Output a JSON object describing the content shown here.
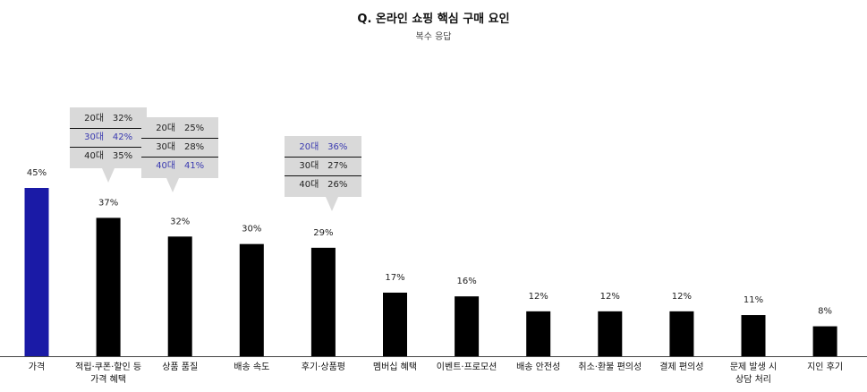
{
  "chart_data": {
    "type": "bar",
    "title": "Q. 온라인 쇼핑 핵심 구매 요인",
    "subtitle": "복수 응답",
    "categories": [
      [
        "가격"
      ],
      [
        "적립·쿠폰·할인 등",
        "가격 혜택"
      ],
      [
        "상품 품질"
      ],
      [
        "배송 속도"
      ],
      [
        "후기·상품평"
      ],
      [
        "멤버십 혜택"
      ],
      [
        "이벤트·프로모션"
      ],
      [
        "배송 안전성"
      ],
      [
        "취소·환불 편의성"
      ],
      [
        "결제 편의성"
      ],
      [
        "문제 발생 시",
        "상담 처리"
      ],
      [
        "지인 후기"
      ]
    ],
    "values": [
      45,
      37,
      32,
      30,
      29,
      17,
      16,
      12,
      12,
      12,
      11,
      8
    ],
    "value_labels": [
      "45%",
      "37%",
      "32%",
      "30%",
      "29%",
      "17%",
      "16%",
      "12%",
      "12%",
      "12%",
      "11%",
      "8%"
    ],
    "colors": {
      "highlight": "#1a1aa6",
      "default": "#000000",
      "callout_bg": "#d9d9d9",
      "callout_highlight_text": "#3a3ab0"
    },
    "highlight_index": 0,
    "ylim": [
      0,
      45
    ],
    "callouts": [
      {
        "category_index": 1,
        "rows": [
          {
            "age": "20대",
            "value": "32%",
            "highlight": false
          },
          {
            "age": "30대",
            "value": "42%",
            "highlight": true
          },
          {
            "age": "40대",
            "value": "35%",
            "highlight": false
          }
        ]
      },
      {
        "category_index": 2,
        "rows": [
          {
            "age": "20대",
            "value": "25%",
            "highlight": false
          },
          {
            "age": "30대",
            "value": "28%",
            "highlight": false
          },
          {
            "age": "40대",
            "value": "41%",
            "highlight": true
          }
        ]
      },
      {
        "category_index": 4,
        "rows": [
          {
            "age": "20대",
            "value": "36%",
            "highlight": true
          },
          {
            "age": "30대",
            "value": "27%",
            "highlight": false
          },
          {
            "age": "40대",
            "value": "26%",
            "highlight": false
          }
        ]
      }
    ]
  }
}
